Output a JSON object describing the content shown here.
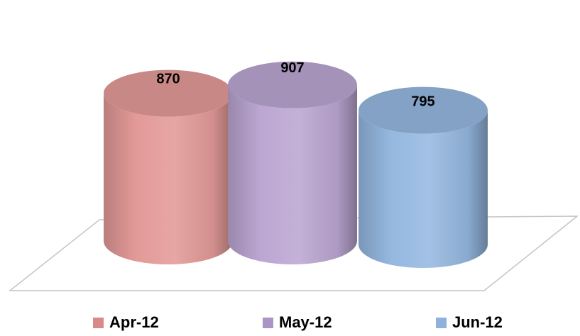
{
  "chart_data": {
    "type": "bar",
    "style": "3d-cylinder",
    "categories": [
      "Apr-12",
      "May-12",
      "Jun-12"
    ],
    "values": [
      870,
      907,
      795
    ],
    "data_labels": [
      "870",
      "907",
      "795"
    ],
    "title": "",
    "xlabel": "",
    "ylabel": "",
    "grid": false,
    "legend_position": "bottom",
    "colors": [
      "#e39a98",
      "#bca6d2",
      "#95b8e0"
    ],
    "legend": [
      {
        "label": "Apr-12",
        "color": "#d98a88"
      },
      {
        "label": "May-12",
        "color": "#ab95c6"
      },
      {
        "label": "Jun-12",
        "color": "#8fb1dc"
      }
    ]
  }
}
